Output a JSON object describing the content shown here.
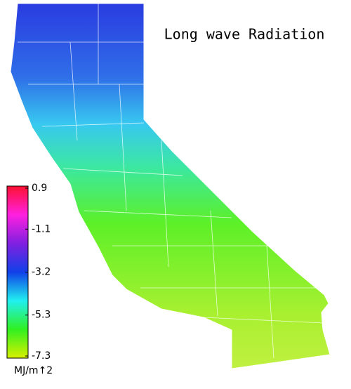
{
  "title": "Long wave Radiation",
  "colorbar": {
    "lim": [
      -7.3,
      0.9
    ],
    "ticks": [
      0.9,
      -1.1,
      -3.2,
      -5.3,
      -7.3
    ],
    "colors": [
      "#d8f000",
      "#30f020",
      "#20f0f0",
      "#1040e8",
      "#8020e0",
      "#ff20e0",
      "#ff1030"
    ],
    "unit": "MJ/m↑2"
  }
}
